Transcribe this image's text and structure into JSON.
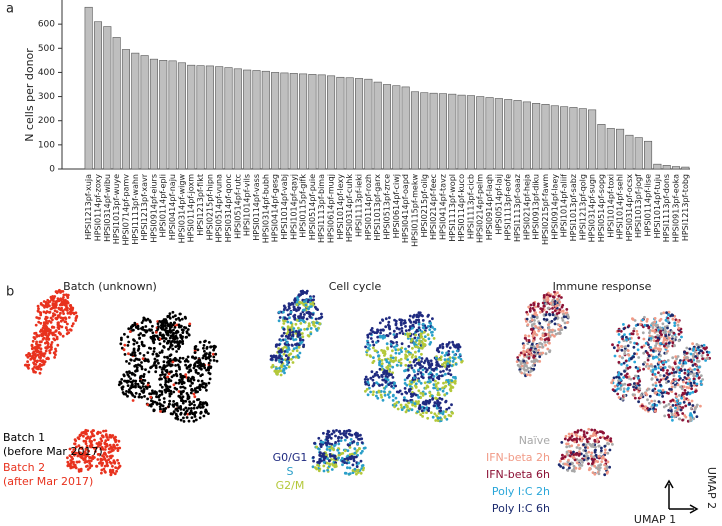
{
  "panel_a_label": "a",
  "chart_data": {
    "type": "bar",
    "ylabel": "N cells per donor",
    "color": "#bfbfbf",
    "categories": [
      "HPSI1213pf-xuja",
      "HPSI0114pf-zoxy",
      "HPSI0314pf-wibu",
      "HPSI1013pf-wuye",
      "HPSI0714pf-pamv",
      "HPSI1113pf-wahn",
      "HPSI1213pf-xavr",
      "HPSI0914pf-eiurs",
      "HPSI0114pf-epli",
      "HPSI0414pf-naju",
      "HPSI0314pf-wigw",
      "HPSI0114pf-joxm",
      "HPSI1213pf-fikt",
      "HPSI0215pf-hipn",
      "HPSI0514pf-vuna",
      "HPSI0314pf-qonc",
      "HPSI0514pf-rutc",
      "HPSI1014pf-vils",
      "HPSI0114pf-vass",
      "HPSI0314pf-bubh",
      "HPSI0414pf-gesg",
      "HPSI1014pf-vabj",
      "HPSI1014pf-qayj",
      "HPSI0115pf-gifk",
      "HPSI0514pf-puie",
      "HPSI1113pf-bima",
      "HPSI0614pf-muqj",
      "HPSI1014pf-lexy",
      "HPSI0314pf-cuhk",
      "HPSI1113pf-ieki",
      "HPSI0114pf-rozh",
      "HPSI1013pf-garx",
      "HPSI0513pf-zrce",
      "HPSI0614pf-ciwj",
      "HPSI0414pf-oapd",
      "HPSI0115pf-mekw",
      "HPSI0215pf-oilg",
      "HPSI0214pf-feec",
      "HPSI0414pf-tavz",
      "HPSI1113pf-wopl",
      "HPSI0114pf-kuco",
      "HPSI1113pf-cicb",
      "HPSI0214pf-pelm",
      "HPSI0914pf-laqh",
      "HPSI0514pf-laij",
      "HPSI1113pf-eofe",
      "HPSI1113pf-oaaz",
      "HPSI0214pf-heja",
      "HPSI0913pf-diku",
      "HPSI0215pf-fawm",
      "HPSI0914pf-laey",
      "HPSI1014pf-aliif",
      "HPSI1013pf-sabz",
      "HPSI1213pf-qolg",
      "HPSI0314pf-sugn",
      "HPSI0514pf-sopg",
      "HPSI1014pf-toxi",
      "HPSI1014pf-sehl",
      "HPSI0314pf-ocsx",
      "HPSI1013pf-jogf",
      "HPSI0114pf-lise",
      "HPSI1014pf-tuju",
      "HPSI1113pf-dons",
      "HPSI0913pf-eoka",
      "HPSI1213pf-tobg"
    ],
    "values": [
      670,
      610,
      590,
      545,
      495,
      480,
      470,
      455,
      450,
      448,
      440,
      430,
      428,
      427,
      424,
      420,
      415,
      410,
      408,
      405,
      400,
      398,
      396,
      394,
      392,
      390,
      386,
      380,
      378,
      375,
      372,
      360,
      350,
      345,
      340,
      320,
      316,
      314,
      312,
      310,
      306,
      304,
      300,
      296,
      292,
      288,
      284,
      278,
      272,
      268,
      262,
      258,
      255,
      250,
      245,
      185,
      168,
      165,
      140,
      130,
      115,
      20,
      15,
      10,
      8
    ],
    "ylim": [
      0,
      700
    ],
    "yticks": [
      0,
      100,
      200,
      300,
      400,
      500,
      600
    ]
  },
  "panel_b_label": "b",
  "umap": [
    {
      "title": "Batch (unknown)",
      "legend": [
        {
          "label": "Batch 1",
          "note": "(before Mar 2017)",
          "color": "#000000"
        },
        {
          "label": "Batch 2",
          "note": "(after Mar 2017)",
          "color": "#e8321e"
        }
      ]
    },
    {
      "title": "Cell cycle",
      "legend": [
        {
          "label": "G0/G1",
          "color": "#1f2a80"
        },
        {
          "label": "S",
          "color": "#2a9fc9"
        },
        {
          "label": "G2/M",
          "color": "#b4c83a"
        }
      ]
    },
    {
      "title": "Immune response",
      "legend": [
        {
          "label": "Naïve",
          "color": "#a8a8a8"
        },
        {
          "label": "IFN-beta 2h",
          "color": "#f19a86"
        },
        {
          "label": "IFN-beta 6h",
          "color": "#8c1236"
        },
        {
          "label": "Poly I:C 2h",
          "color": "#29a6d9"
        },
        {
          "label": "Poly I:C 6h",
          "color": "#1b2a6e"
        }
      ]
    }
  ],
  "umap_x": "UMAP 1",
  "umap_y": "UMAP 2"
}
